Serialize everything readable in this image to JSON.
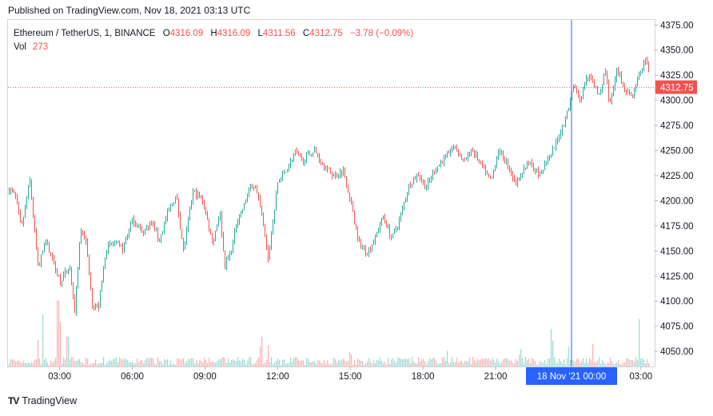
{
  "published": "Published on TradingView.com, Nov 18, 2021 03:13 UTC",
  "legend": {
    "symbol": "Ethereum / TetherUS, 1, BINANCE",
    "o_label": "O",
    "o": "4316.09",
    "h_label": "H",
    "h": "4316.09",
    "l_label": "L",
    "l": "4311.56",
    "c_label": "C",
    "c": "4312.75",
    "change": "−3.78 (−0.09%)",
    "vol_label": "Vol",
    "vol": "273"
  },
  "footer": {
    "brand": "TradingView",
    "logo": "TV"
  },
  "colors": {
    "up": "#26a69a",
    "down": "#ef5350",
    "crosshair": "#2962ff",
    "grid": "#ffffff",
    "text": "#131722"
  },
  "chart_data": {
    "type": "candlestick",
    "title": "Ethereum / TetherUS, 1, BINANCE",
    "interval": "1 minute",
    "yaxis_position": "right",
    "ylim": [
      4035,
      4380
    ],
    "yticks": [
      "4375.00",
      "4350.00",
      "4325.00",
      "4300.00",
      "4275.00",
      "4250.00",
      "4225.00",
      "4200.00",
      "4175.00",
      "4150.00",
      "4125.00",
      "4100.00",
      "4075.00",
      "4050.00"
    ],
    "xticks": [
      "03:00",
      "06:00",
      "09:00",
      "12:00",
      "15:00",
      "18:00",
      "21:00",
      "00:00",
      "03:00"
    ],
    "current_price_label": "4312.75",
    "crosshair_label": "18 Nov '21   00:00",
    "price_path": {
      "hours_from_0100": [
        0,
        0.15,
        0.4,
        0.55,
        0.75,
        1.1,
        1.4,
        1.6,
        2.0,
        2.4,
        2.6,
        2.85,
        3.05,
        3.35,
        3.6,
        3.9,
        4.2,
        4.6,
        5.0,
        5.4,
        5.8,
        6.1,
        6.4,
        6.8,
        7.1,
        7.5,
        7.9,
        8.3,
        8.6,
        8.8,
        9.1,
        9.3,
        9.6,
        9.8,
        10.1,
        10.35,
        10.6,
        11.0,
        11.3,
        11.7,
        12.0,
        12.5,
        12.9,
        13.3,
        13.7,
        14.0,
        14.3,
        14.7,
        15.0,
        15.35,
        15.7,
        16.0,
        16.4,
        16.8,
        17.1,
        17.5,
        17.9,
        18.3,
        18.7,
        19.0,
        19.4,
        19.8,
        20.1,
        20.5,
        20.8,
        21.1,
        21.4,
        21.8,
        22.2,
        22.5,
        22.8,
        23.0,
        23.2,
        23.5,
        23.7,
        24.0,
        24.3,
        24.5,
        24.7,
        25.0,
        25.3,
        25.6,
        25.9,
        26.2,
        26.45
      ],
      "close": [
        4210,
        4205,
        4172,
        4190,
        4222,
        4132,
        4162,
        4148,
        4120,
        4135,
        4088,
        4172,
        4162,
        4095,
        4095,
        4152,
        4158,
        4152,
        4182,
        4168,
        4178,
        4160,
        4185,
        4205,
        4150,
        4210,
        4200,
        4158,
        4190,
        4135,
        4152,
        4180,
        4195,
        4212,
        4215,
        4180,
        4143,
        4220,
        4228,
        4248,
        4240,
        4250,
        4235,
        4225,
        4230,
        4200,
        4160,
        4148,
        4163,
        4185,
        4162,
        4180,
        4215,
        4227,
        4213,
        4232,
        4243,
        4255,
        4238,
        4252,
        4235,
        4220,
        4250,
        4236,
        4217,
        4230,
        4240,
        4225,
        4242,
        4258,
        4278,
        4292,
        4318,
        4298,
        4323,
        4319,
        4302,
        4333,
        4295,
        4329,
        4313,
        4304,
        4325,
        4342,
        4313
      ]
    },
    "volume": {
      "typical": 10,
      "spikes": [
        [
          1.3,
          95
        ],
        [
          1.1,
          40
        ],
        [
          1.9,
          100
        ],
        [
          2.0,
          70
        ],
        [
          2.3,
          50
        ],
        [
          10.3,
          40
        ],
        [
          10.6,
          30
        ],
        [
          14.0,
          20
        ],
        [
          18.0,
          20
        ],
        [
          21.0,
          25
        ],
        [
          22.3,
          50
        ],
        [
          23.0,
          35
        ],
        [
          24.0,
          30
        ],
        [
          25.9,
          60
        ]
      ]
    }
  }
}
